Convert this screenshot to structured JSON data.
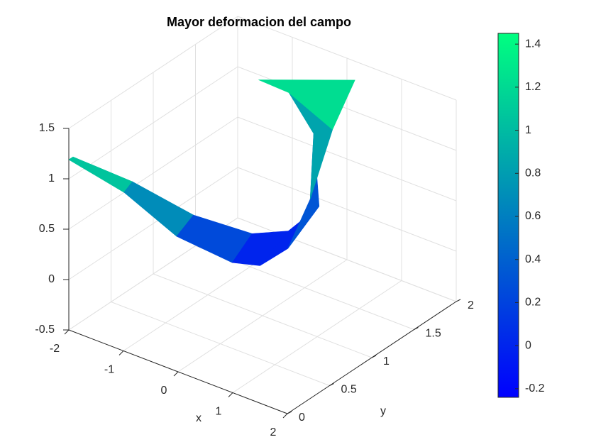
{
  "chart_data": {
    "type": "surface3d",
    "title": "Mayor deformacion del campo",
    "xlabel": "x",
    "ylabel": "y",
    "xlim": [
      -2,
      2
    ],
    "xticks": [
      -2,
      -1,
      0,
      1,
      2
    ],
    "ylim": [
      0,
      2
    ],
    "yticks": [
      0,
      0.5,
      1,
      1.5,
      2
    ],
    "zlim": [
      -0.5,
      1.5
    ],
    "zticks": [
      -0.5,
      0,
      0.5,
      1,
      1.5
    ],
    "grid": true,
    "colormap": [
      "#0000ff",
      "#00ff80"
    ],
    "clim": [
      -0.24,
      1.45
    ],
    "cticks": [
      -0.2,
      0,
      0.2,
      0.4,
      0.6,
      0.8,
      1,
      1.2,
      1.4
    ],
    "surface": {
      "x": [
        [
          -2,
          -1.3,
          -0.8,
          -0.4,
          -0.2,
          0,
          0.1,
          0.2,
          0.3
        ],
        [
          -2,
          -1.3,
          -0.8,
          -0.5,
          -0.3,
          -0.2,
          -0.3,
          -0.6,
          -1.0
        ]
      ],
      "y": [
        [
          0,
          0.2,
          0.5,
          0.9,
          1.1,
          1.3,
          1.5,
          1.7,
          1.9
        ],
        [
          0.05,
          0.3,
          0.7,
          1.2,
          1.5,
          1.8,
          1.8,
          1.7,
          1.6
        ]
      ],
      "z": [
        [
          1.19,
          0.9,
          0.4,
          0.0,
          -0.1,
          0.0,
          0.4,
          1.0,
          1.4
        ],
        [
          1.19,
          0.95,
          0.5,
          0.1,
          0.0,
          0.1,
          0.8,
          1.2,
          1.3
        ]
      ]
    }
  }
}
